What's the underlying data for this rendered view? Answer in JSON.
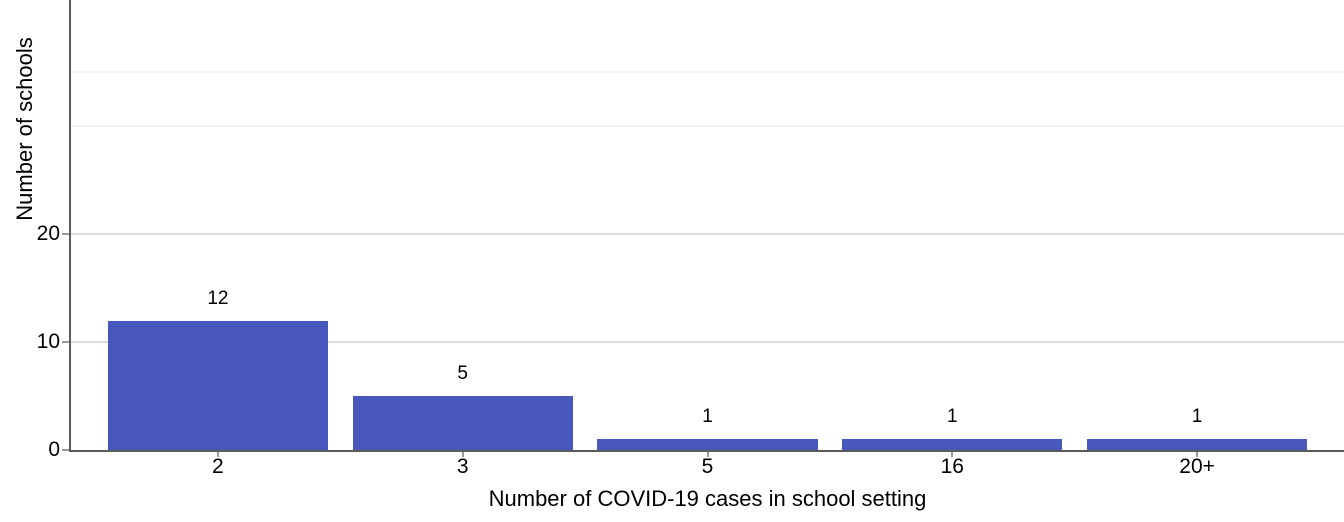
{
  "chart_data": {
    "type": "bar",
    "categories": [
      "2",
      "3",
      "5",
      "16",
      "20+"
    ],
    "values": [
      12,
      5,
      1,
      1,
      1
    ],
    "title": "",
    "xlabel": "Number of COVID-19 cases in school setting",
    "ylabel": "Number of schools",
    "yticks": [
      0,
      10,
      20
    ],
    "ylim": [
      0,
      41.7
    ],
    "gridlines_major": [
      10,
      20
    ],
    "gridlines_faint": [
      30,
      35
    ],
    "legend": "none",
    "grid_on": true,
    "colors": {
      "bar_fill": "#4757BB",
      "grid_major": "#dcdcdc",
      "grid_faint": "#f2f2f2",
      "axis_line": "#5a5a5a",
      "tick_mark": "#999999",
      "text": "#000000"
    }
  }
}
